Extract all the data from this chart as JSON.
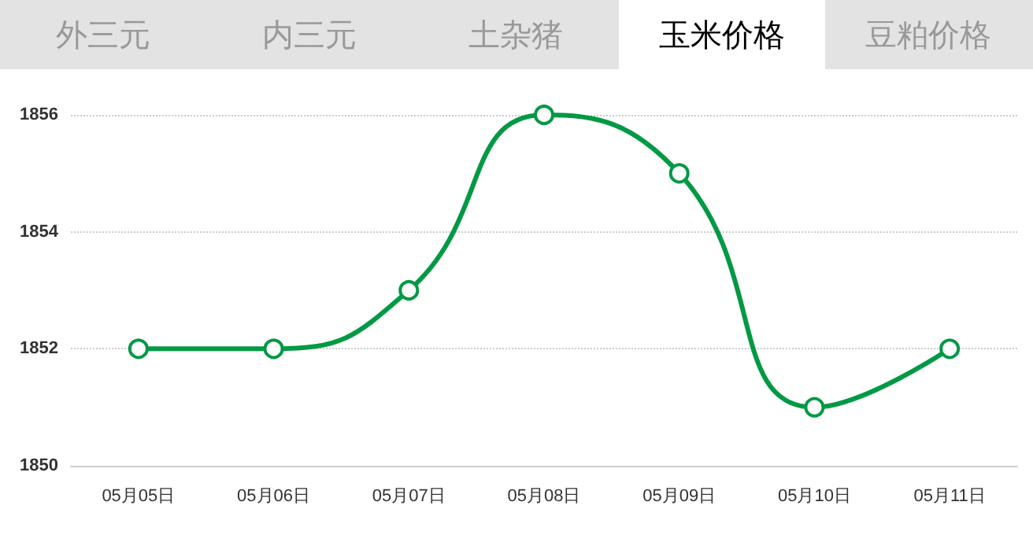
{
  "chart_data": {
    "type": "line",
    "annotations": [
      "外三元",
      "内三元",
      "土杂猪",
      "玉米价格",
      "豆粕价格"
    ],
    "categories": [
      "05月05日",
      "05月06日",
      "05月07日",
      "05月08日",
      "05月09日",
      "05月10日",
      "05月11日"
    ],
    "series": [
      {
        "color": "#009944",
        "values": [
          1852,
          1852,
          1853,
          1856,
          1855,
          1851,
          1852
        ]
      }
    ],
    "ylim": [
      1850,
      1856
    ],
    "yticks": [
      1850,
      1852,
      1854,
      1856
    ],
    "grid": "y",
    "marker": "circle",
    "line_style": "solid"
  }
}
